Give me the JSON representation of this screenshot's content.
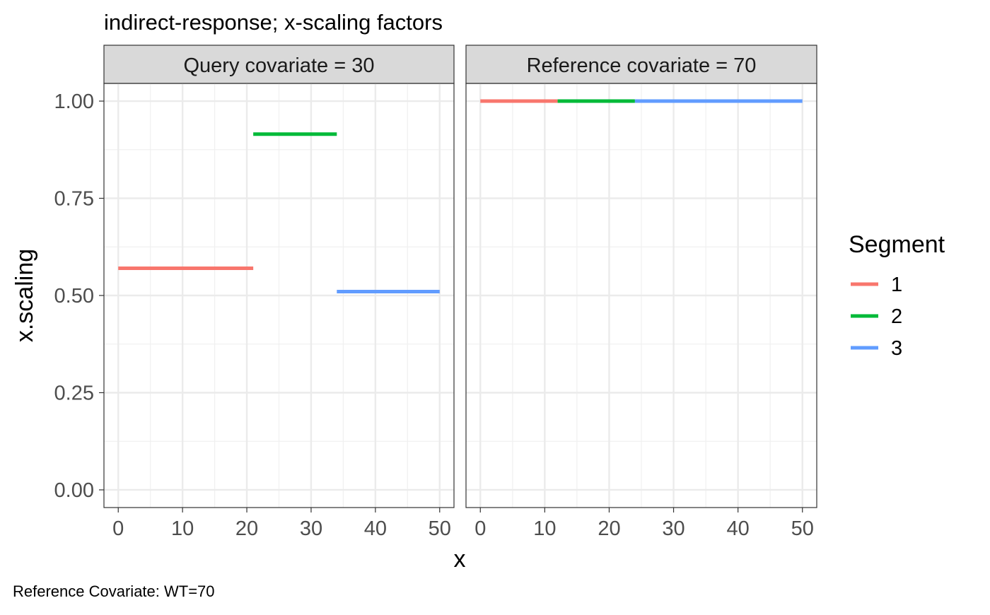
{
  "chart_data": {
    "type": "line",
    "title": "indirect-response; x-scaling factors",
    "xlabel": "x",
    "ylabel": "x.scaling",
    "caption": "Reference Covariate: WT=70",
    "xlim": [
      0,
      50
    ],
    "ylim": [
      0,
      1
    ],
    "x_ticks": [
      0,
      10,
      20,
      30,
      40,
      50
    ],
    "x_tick_labels": [
      "0",
      "10",
      "20",
      "30",
      "40",
      "50"
    ],
    "y_ticks": [
      0,
      0.25,
      0.5,
      0.75,
      1.0
    ],
    "y_tick_labels": [
      "0.00",
      "0.25",
      "0.50",
      "0.75",
      "1.00"
    ],
    "grid": true,
    "legend": {
      "title": "Segment",
      "placement": "right",
      "entries": [
        {
          "label": "1",
          "color": "#F8766D"
        },
        {
          "label": "2",
          "color": "#00BA38"
        },
        {
          "label": "3",
          "color": "#619CFF"
        }
      ]
    },
    "panels": [
      {
        "strip": "Query  covariate = 30",
        "segments": [
          {
            "series": "1",
            "x_start": 0,
            "x_end": 21,
            "y": 0.57
          },
          {
            "series": "2",
            "x_start": 21,
            "x_end": 34,
            "y": 0.915
          },
          {
            "series": "3",
            "x_start": 34,
            "x_end": 50,
            "y": 0.51
          }
        ]
      },
      {
        "strip": "Reference  covariate = 70",
        "segments": [
          {
            "series": "1",
            "x_start": 0,
            "x_end": 12,
            "y": 1.0
          },
          {
            "series": "2",
            "x_start": 12,
            "x_end": 24,
            "y": 1.0
          },
          {
            "series": "3",
            "x_start": 24,
            "x_end": 50,
            "y": 1.0
          }
        ]
      }
    ]
  }
}
